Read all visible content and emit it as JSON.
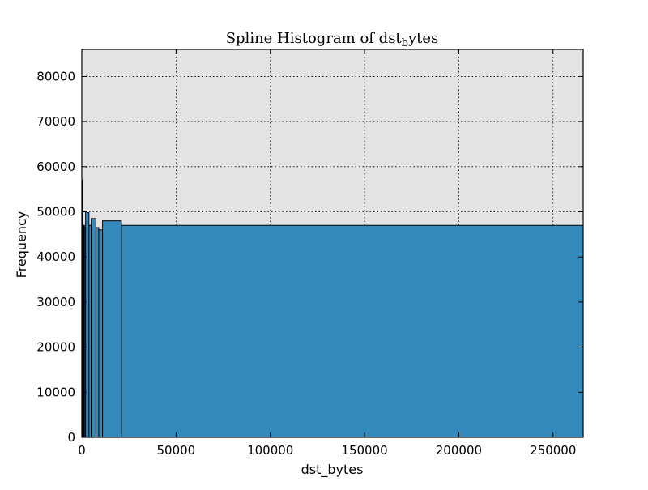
{
  "chart_data": {
    "type": "bar",
    "title": "Spline Histogram of dst",
    "title_subscript": "b",
    "title_suffix": "ytes",
    "xlabel": "dst_bytes",
    "ylabel": "Frequency",
    "xlim": [
      0,
      266000
    ],
    "ylim": [
      0,
      86000
    ],
    "xticks": [
      0,
      50000,
      100000,
      150000,
      200000,
      250000
    ],
    "yticks": [
      0,
      10000,
      20000,
      30000,
      40000,
      50000,
      60000,
      70000,
      80000
    ],
    "grid": true,
    "plot_background": "#e3e3e3",
    "bar_color": "#348abd",
    "edge_color": "#000000",
    "bins": [
      {
        "x0": 0,
        "x1": 150,
        "value": 57000
      },
      {
        "x0": 150,
        "x1": 320,
        "value": 50000
      },
      {
        "x0": 320,
        "x1": 500,
        "value": 45500
      },
      {
        "x0": 500,
        "x1": 720,
        "value": 47000
      },
      {
        "x0": 720,
        "x1": 1000,
        "value": 46500
      },
      {
        "x0": 1000,
        "x1": 1400,
        "value": 47000
      },
      {
        "x0": 1400,
        "x1": 2000,
        "value": 46500
      },
      {
        "x0": 2000,
        "x1": 2800,
        "value": 50000
      },
      {
        "x0": 2800,
        "x1": 3800,
        "value": 49800
      },
      {
        "x0": 3800,
        "x1": 5000,
        "value": 47000
      },
      {
        "x0": 5000,
        "x1": 7500,
        "value": 48500
      },
      {
        "x0": 7500,
        "x1": 9000,
        "value": 46500
      },
      {
        "x0": 9000,
        "x1": 11000,
        "value": 46000
      },
      {
        "x0": 11000,
        "x1": 21000,
        "value": 48000
      },
      {
        "x0": 21000,
        "x1": 266000,
        "value": 47000
      }
    ]
  }
}
